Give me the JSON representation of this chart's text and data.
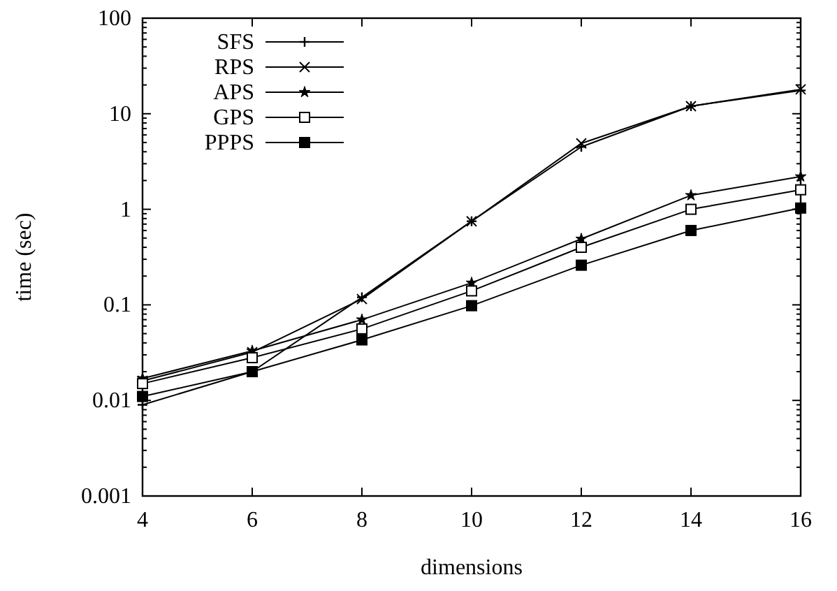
{
  "chart_data": {
    "type": "line",
    "xlabel": "dimensions",
    "ylabel": "time (sec)",
    "x": [
      4,
      6,
      8,
      10,
      12,
      14,
      16
    ],
    "xlim": [
      4,
      16
    ],
    "xticks": [
      4,
      6,
      8,
      10,
      12,
      14,
      16
    ],
    "ylim": [
      0.001,
      100
    ],
    "log": "y",
    "legend": "top left",
    "grid": false,
    "yticks": [
      {
        "value": 0.001,
        "label": "0.001"
      },
      {
        "value": 0.002,
        "label": null
      },
      {
        "value": 0.003,
        "label": null
      },
      {
        "value": 0.004,
        "label": null
      },
      {
        "value": 0.005,
        "label": null
      },
      {
        "value": 0.006,
        "label": null
      },
      {
        "value": 0.007,
        "label": null
      },
      {
        "value": 0.008,
        "label": null
      },
      {
        "value": 0.009,
        "label": null
      },
      {
        "value": 0.01,
        "label": "0.01"
      },
      {
        "value": 0.02,
        "label": null
      },
      {
        "value": 0.03,
        "label": null
      },
      {
        "value": 0.04,
        "label": null
      },
      {
        "value": 0.05,
        "label": null
      },
      {
        "value": 0.06,
        "label": null
      },
      {
        "value": 0.07,
        "label": null
      },
      {
        "value": 0.08,
        "label": null
      },
      {
        "value": 0.09,
        "label": null
      },
      {
        "value": 0.1,
        "label": "0.1"
      },
      {
        "value": 0.2,
        "label": null
      },
      {
        "value": 0.3,
        "label": null
      },
      {
        "value": 0.4,
        "label": null
      },
      {
        "value": 0.5,
        "label": null
      },
      {
        "value": 0.6,
        "label": null
      },
      {
        "value": 0.7,
        "label": null
      },
      {
        "value": 0.8,
        "label": null
      },
      {
        "value": 0.9,
        "label": null
      },
      {
        "value": 1,
        "label": "1"
      },
      {
        "value": 2,
        "label": null
      },
      {
        "value": 3,
        "label": null
      },
      {
        "value": 4,
        "label": null
      },
      {
        "value": 5,
        "label": null
      },
      {
        "value": 6,
        "label": null
      },
      {
        "value": 7,
        "label": null
      },
      {
        "value": 8,
        "label": null
      },
      {
        "value": 9,
        "label": null
      },
      {
        "value": 10,
        "label": "10"
      },
      {
        "value": 20,
        "label": null
      },
      {
        "value": 30,
        "label": null
      },
      {
        "value": 40,
        "label": null
      },
      {
        "value": 50,
        "label": null
      },
      {
        "value": 60,
        "label": null
      },
      {
        "value": 70,
        "label": null
      },
      {
        "value": 80,
        "label": null
      },
      {
        "value": 90,
        "label": null
      },
      {
        "value": 100,
        "label": "100"
      }
    ],
    "series": [
      {
        "name": "SFS",
        "color": "#000000",
        "marker": "cross",
        "values": [
          0.009,
          0.02,
          0.12,
          0.75,
          4.5,
          12,
          17.5
        ]
      },
      {
        "name": "RPS",
        "color": "#000000",
        "marker": "x",
        "values": [
          0.016,
          0.032,
          0.115,
          0.75,
          4.9,
          12,
          18
        ]
      },
      {
        "name": "APS",
        "color": "#000000",
        "marker": "star",
        "values": [
          0.017,
          0.033,
          0.07,
          0.17,
          0.49,
          1.4,
          2.2
        ]
      },
      {
        "name": "GPS",
        "color": "#000000",
        "marker": "square-open",
        "values": [
          0.015,
          0.028,
          0.056,
          0.14,
          0.4,
          1.0,
          1.6
        ]
      },
      {
        "name": "PPPS",
        "color": "#000000",
        "marker": "square",
        "values": [
          0.011,
          0.02,
          0.043,
          0.098,
          0.26,
          0.6,
          1.03
        ]
      }
    ]
  }
}
